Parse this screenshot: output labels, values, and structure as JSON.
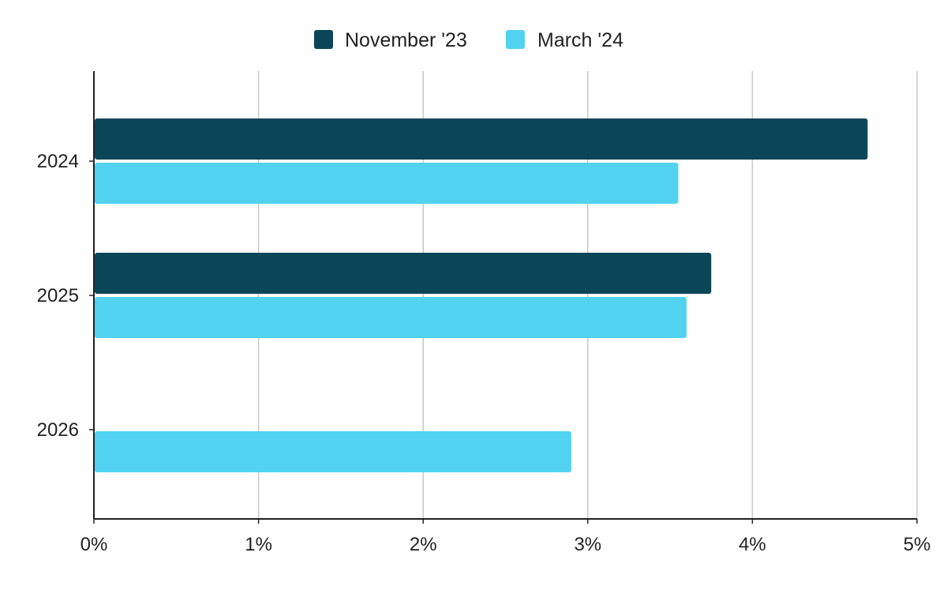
{
  "chart_data": {
    "type": "bar",
    "orientation": "horizontal",
    "categories": [
      "2024",
      "2025",
      "2026"
    ],
    "series": [
      {
        "name": "November '23",
        "color": "#0b4558",
        "values": [
          4.7,
          3.75,
          null
        ]
      },
      {
        "name": "March '24",
        "color": "#51d2f1",
        "values": [
          3.55,
          3.6,
          2.9
        ]
      }
    ],
    "x_ticks": [
      "0%",
      "1%",
      "2%",
      "3%",
      "4%",
      "5%"
    ],
    "xlim": [
      0,
      5
    ],
    "xlabel": "",
    "ylabel": "",
    "title": "",
    "grid": true,
    "legend_position": "top-center"
  }
}
